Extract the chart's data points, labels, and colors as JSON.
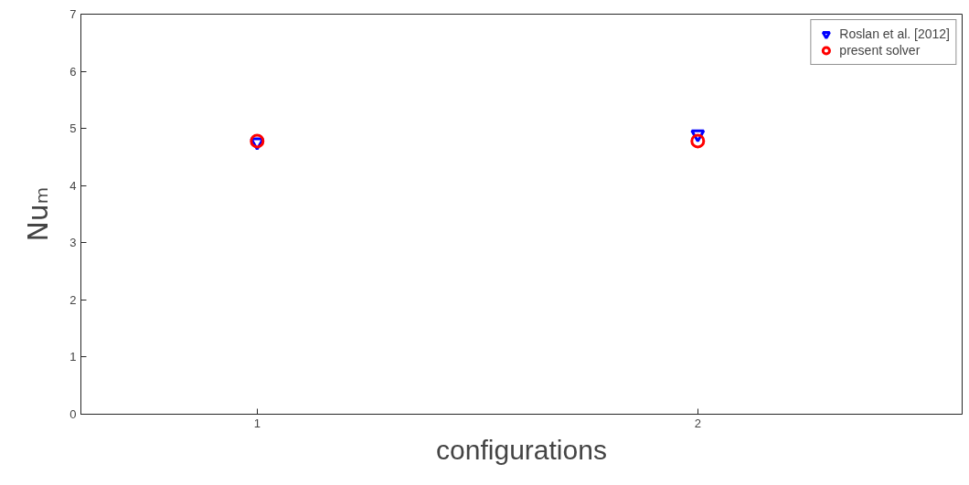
{
  "chart_data": {
    "type": "scatter",
    "xlabel": "configurations",
    "ylabel": "Nuₘ",
    "x": [
      1,
      2
    ],
    "series": [
      {
        "name": "Roslan et al. [2012]",
        "color": "#0000ff",
        "marker": "triangle",
        "values": [
          4.76,
          4.9
        ]
      },
      {
        "name": "present solver",
        "color": "#ff0000",
        "marker": "circle",
        "values": [
          4.78,
          4.78
        ]
      }
    ],
    "xlim": [
      0.6,
      2.6
    ],
    "ylim": [
      0,
      7
    ],
    "xticks": [
      1,
      2
    ],
    "yticks": [
      0,
      1,
      2,
      3,
      4,
      5,
      6,
      7
    ],
    "grid": false,
    "legend": "top right"
  }
}
